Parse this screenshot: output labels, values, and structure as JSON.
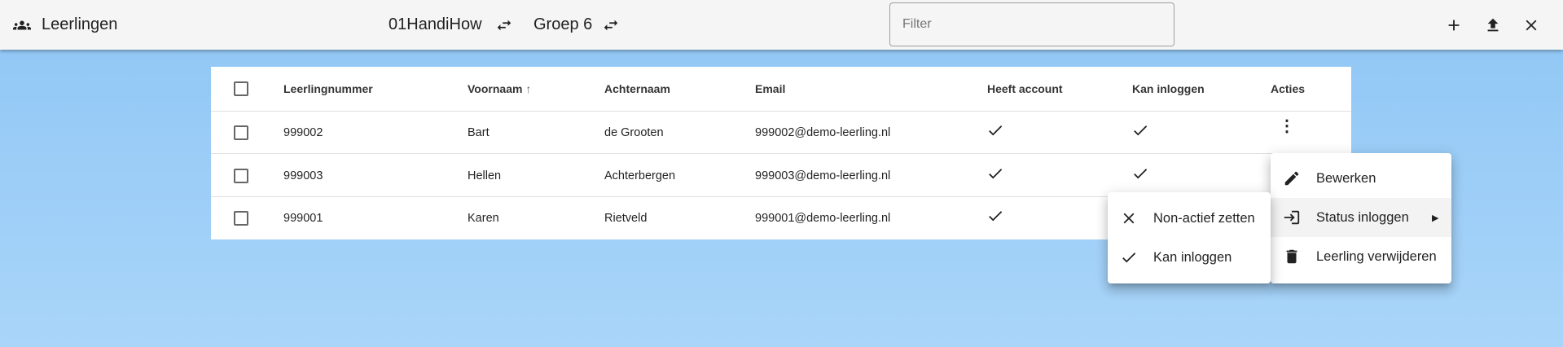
{
  "header": {
    "title": "Leerlingen",
    "school": "01HandiHow",
    "group": "Groep 6",
    "filter_placeholder": "Filter"
  },
  "table": {
    "columns": [
      "Leerlingnummer",
      "Voornaam",
      "Achternaam",
      "Email",
      "Heeft account",
      "Kan inloggen",
      "Acties"
    ],
    "sort": {
      "column": "Voornaam",
      "direction": "ascending"
    },
    "rows": [
      {
        "nummer": "999002",
        "voornaam": "Bart",
        "achternaam": "de Grooten",
        "email": "999002@demo-leerling.nl",
        "heeft_account": true,
        "kan_inloggen": true
      },
      {
        "nummer": "999003",
        "voornaam": "Hellen",
        "achternaam": "Achterbergen",
        "email": "999003@demo-leerling.nl",
        "heeft_account": true,
        "kan_inloggen": true
      },
      {
        "nummer": "999001",
        "voornaam": "Karen",
        "achternaam": "Rietveld",
        "email": "999001@demo-leerling.nl",
        "heeft_account": true,
        "kan_inloggen": null
      }
    ]
  },
  "menu": {
    "items": [
      "Bewerken",
      "Status inloggen",
      "Leerling verwijderen"
    ]
  },
  "submenu": {
    "items": [
      "Non-actief zetten",
      "Kan inloggen"
    ]
  }
}
